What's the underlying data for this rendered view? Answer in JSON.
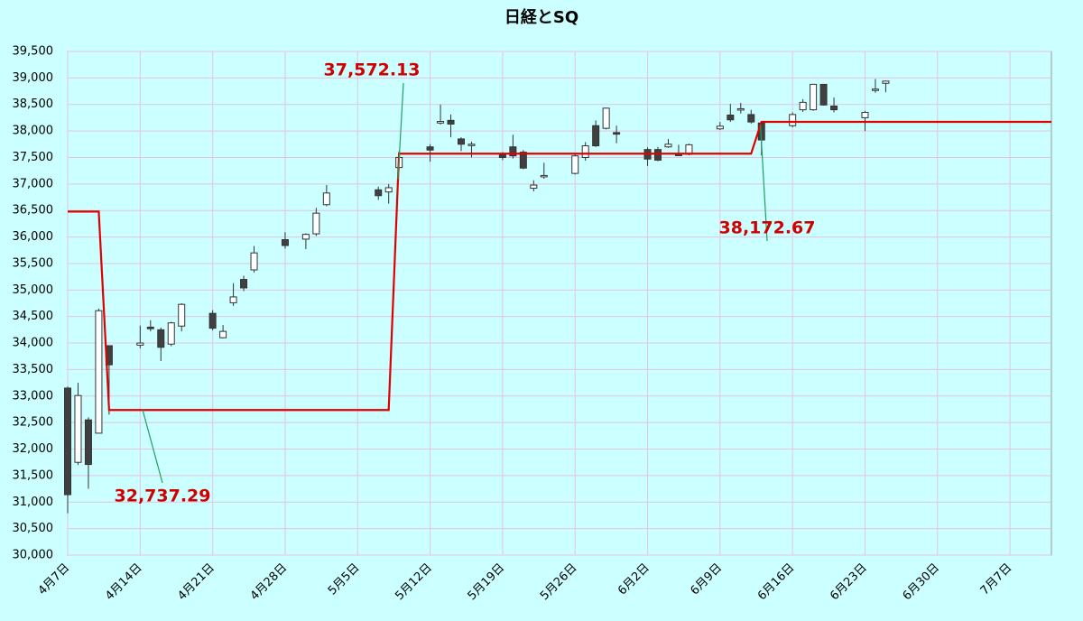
{
  "chart_data": {
    "type": "candlestick",
    "title": "日経とSQ",
    "x": [
      "4月7日",
      "4月8日",
      "4月9日",
      "4月10日",
      "4月11日",
      "4月14日",
      "4月15日",
      "4月16日",
      "4月17日",
      "4月18日",
      "4月21日",
      "4月22日",
      "4月23日",
      "4月24日",
      "4月25日",
      "4月28日",
      "4月30日",
      "5月1日",
      "5月2日",
      "5月7日",
      "5月8日",
      "5月9日",
      "5月12日",
      "5月13日",
      "5月14日",
      "5月15日",
      "5月16日",
      "5月19日",
      "5月20日",
      "5月21日",
      "5月22日",
      "5月23日",
      "5月26日",
      "5月27日",
      "5月28日",
      "5月29日",
      "5月30日",
      "6月2日",
      "6月3日",
      "6月4日",
      "6月5日",
      "6月6日",
      "6月9日",
      "6月10日",
      "6月11日",
      "6月12日",
      "6月13日",
      "6月16日",
      "6月17日",
      "6月18日",
      "6月19日",
      "6月20日",
      "6月23日",
      "6月24日",
      "6月25日"
    ],
    "open": [
      33150,
      31750,
      32550,
      32300,
      33950,
      33960,
      34300,
      34250,
      33980,
      34320,
      34560,
      34100,
      34760,
      35200,
      35380,
      35950,
      35960,
      36060,
      36610,
      36890,
      36850,
      37310,
      37700,
      38150,
      38200,
      37850,
      37740,
      37550,
      37700,
      37600,
      36920,
      37140,
      37200,
      37500,
      38100,
      38050,
      37970,
      37650,
      37650,
      37700,
      37560,
      37560,
      38040,
      38300,
      38400,
      38310,
      38150,
      38100,
      38400,
      38400,
      38880,
      38470,
      38250,
      38780,
      38900
    ],
    "high": [
      33180,
      33250,
      32600,
      34650,
      33950,
      34330,
      34430,
      34290,
      34400,
      34750,
      34620,
      34340,
      35130,
      35270,
      35830,
      36090,
      36070,
      36550,
      36980,
      36950,
      37000,
      37620,
      37750,
      38500,
      38310,
      37880,
      37800,
      37600,
      37930,
      37640,
      37070,
      37400,
      37560,
      37790,
      38200,
      38440,
      38100,
      37690,
      37700,
      37850,
      37740,
      37760,
      38170,
      38510,
      38530,
      38400,
      38150,
      38350,
      38600,
      38890,
      38880,
      38630,
      38380,
      38980,
      38950
    ],
    "low": [
      30790,
      31700,
      31250,
      32300,
      32650,
      33900,
      34220,
      33660,
      33940,
      34220,
      34240,
      34090,
      34700,
      34980,
      35330,
      35780,
      35770,
      36020,
      36580,
      36700,
      36630,
      37260,
      37420,
      38120,
      37880,
      37620,
      37500,
      37450,
      37480,
      37280,
      36860,
      37100,
      37180,
      37440,
      37700,
      38030,
      37770,
      37340,
      37430,
      37680,
      37530,
      37540,
      38020,
      38170,
      38330,
      38140,
      37540,
      38070,
      38360,
      38380,
      38480,
      38350,
      38000,
      38720,
      38730
    ],
    "close": [
      31140,
      33010,
      31710,
      34610,
      33590,
      34000,
      34270,
      33920,
      34380,
      34730,
      34280,
      34220,
      34870,
      35040,
      35700,
      35840,
      36050,
      36450,
      36830,
      36780,
      36930,
      37500,
      37640,
      38180,
      38130,
      37750,
      37750,
      37500,
      37530,
      37300,
      36980,
      37160,
      37530,
      37720,
      37720,
      38430,
      37940,
      37470,
      37450,
      37750,
      37550,
      37740,
      38090,
      38210,
      38420,
      38170,
      37830,
      38310,
      38540,
      38880,
      38490,
      38400,
      38350,
      38790,
      38940
    ],
    "up_color": "#ffffff",
    "down_color": "#404040",
    "sq": {
      "color": "#e00000",
      "x": [
        "4月7日",
        "4月10日",
        "4月11日",
        "5月8日",
        "5月9日",
        "6月12日",
        "6月13日",
        "7月11日"
      ],
      "values": [
        36480,
        36480,
        32737.29,
        32737.29,
        37572.13,
        37572.13,
        38172.67,
        38172.67
      ]
    },
    "annotations": [
      "32,737.29",
      "37,572.13",
      "38,172.67"
    ],
    "xlim": [
      "4月7日",
      "7月11日"
    ],
    "xticks": [
      "4月7日",
      "4月14日",
      "4月21日",
      "4月28日",
      "5月5日",
      "5月12日",
      "5月19日",
      "5月26日",
      "6月2日",
      "6月9日",
      "6月16日",
      "6月23日",
      "6月30日",
      "7月7日"
    ],
    "ylim": [
      30000,
      39500
    ],
    "yticks": [
      {
        "value": 30000,
        "label": "30,000"
      },
      {
        "value": 30500,
        "label": "30,500"
      },
      {
        "value": 31000,
        "label": "31,000"
      },
      {
        "value": 31500,
        "label": "31,500"
      },
      {
        "value": 32000,
        "label": "32,000"
      },
      {
        "value": 32500,
        "label": "32,500"
      },
      {
        "value": 33000,
        "label": "33,000"
      },
      {
        "value": 33500,
        "label": "33,500"
      },
      {
        "value": 34000,
        "label": "34,000"
      },
      {
        "value": 34500,
        "label": "34,500"
      },
      {
        "value": 35000,
        "label": "35,000"
      },
      {
        "value": 35500,
        "label": "35,500"
      },
      {
        "value": 36000,
        "label": "36,000"
      },
      {
        "value": 36500,
        "label": "36,500"
      },
      {
        "value": 37000,
        "label": "37,000"
      },
      {
        "value": 37500,
        "label": "37,500"
      },
      {
        "value": 38000,
        "label": "38,000"
      },
      {
        "value": 38500,
        "label": "38,500"
      },
      {
        "value": 39000,
        "label": "39,000"
      },
      {
        "value": 39500,
        "label": "39,500"
      }
    ],
    "grid": true
  }
}
